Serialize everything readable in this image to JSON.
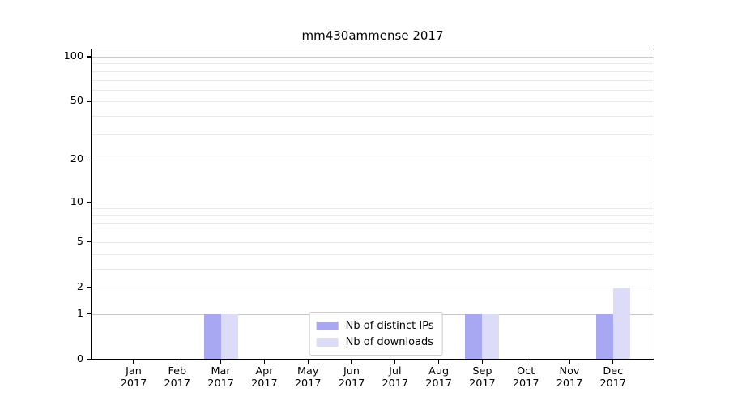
{
  "title": "mm430ammense 2017",
  "chart_data": {
    "type": "bar",
    "title": "mm430ammense 2017",
    "categories": [
      "Jan",
      "Feb",
      "Mar",
      "Apr",
      "May",
      "Jun",
      "Jul",
      "Aug",
      "Sep",
      "Oct",
      "Nov",
      "Dec"
    ],
    "x_year": "2017",
    "series": [
      {
        "name": "Nb of distinct IPs",
        "color": "#a7a7f2",
        "values": [
          0,
          0,
          1,
          0,
          0,
          0,
          0,
          0,
          1,
          0,
          0,
          1
        ]
      },
      {
        "name": "Nb of downloads",
        "color": "#dcdcf9",
        "values": [
          0,
          0,
          1,
          0,
          0,
          0,
          0,
          0,
          1,
          0,
          0,
          2
        ]
      }
    ],
    "y_axis": {
      "scale": "log1p",
      "ticks": [
        0,
        1,
        2,
        5,
        10,
        20,
        50,
        100
      ],
      "tick_labels": [
        "0",
        "1",
        "2",
        "5",
        "10",
        "20",
        "50",
        "100"
      ],
      "minor_gridlines": [
        3,
        4,
        6,
        7,
        8,
        9,
        30,
        40,
        60,
        70,
        80,
        90
      ],
      "decade_gridlines": [
        1,
        10,
        100
      ],
      "max": 100
    },
    "grid": true,
    "legend_position": "lower center",
    "colors": {
      "major_gridline": "#c9c9c9",
      "minor_gridline": "#eaeaea",
      "spine": "#000000"
    }
  }
}
